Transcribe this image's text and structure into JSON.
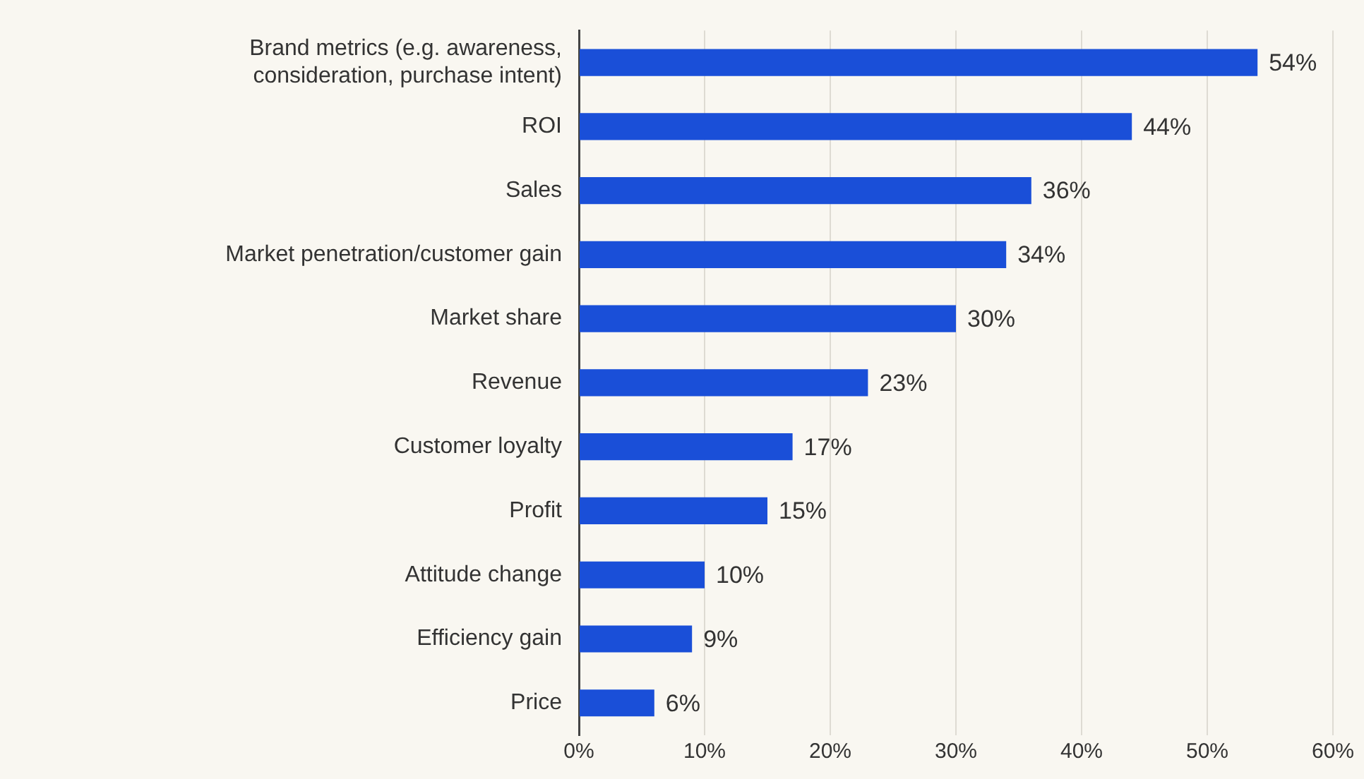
{
  "chart_data": {
    "type": "bar",
    "orientation": "horizontal",
    "categories": [
      "Brand metrics (e.g. awareness, consideration, purchase intent)",
      "ROI",
      "Sales",
      "Market penetration/customer gain",
      "Market share",
      "Revenue",
      "Customer loyalty",
      "Profit",
      "Attitude change",
      "Efficiency gain",
      "Price"
    ],
    "values": [
      54,
      44,
      36,
      34,
      30,
      23,
      17,
      15,
      10,
      9,
      6
    ],
    "value_labels": [
      "54%",
      "44%",
      "36%",
      "34%",
      "30%",
      "23%",
      "17%",
      "15%",
      "10%",
      "9%",
      "6%"
    ],
    "color": "#1a4fd8",
    "xlim": [
      0,
      60
    ],
    "xticks": [
      {
        "value": 0,
        "label": "0%"
      },
      {
        "value": 10,
        "label": "10%"
      },
      {
        "value": 20,
        "label": "20%"
      },
      {
        "value": 30,
        "label": "30%"
      },
      {
        "value": 40,
        "label": "40%"
      },
      {
        "value": 50,
        "label": "50%"
      },
      {
        "value": 60,
        "label": "60%"
      }
    ],
    "grid": "x",
    "legend": false
  }
}
